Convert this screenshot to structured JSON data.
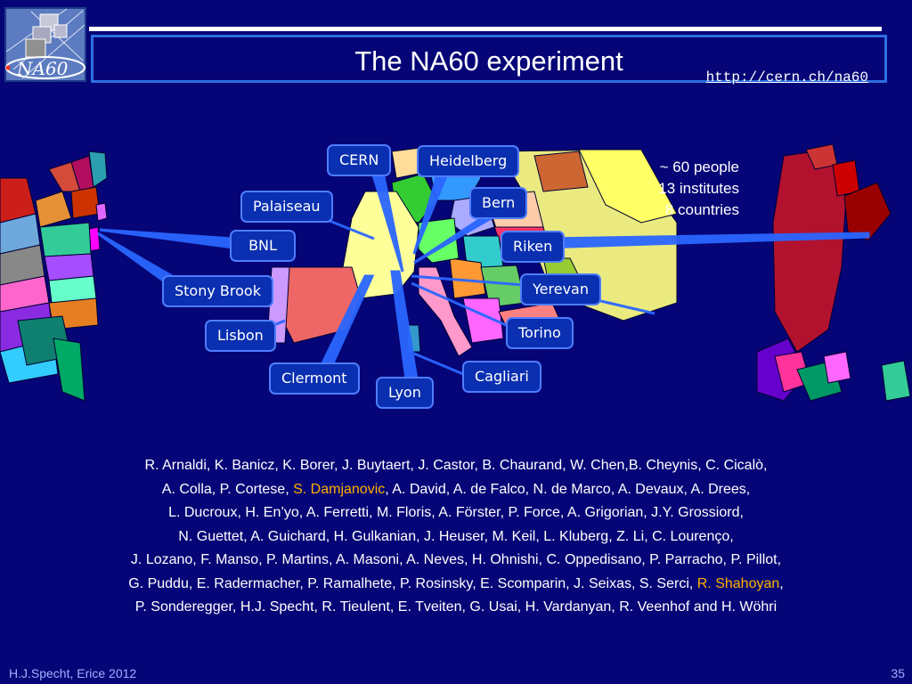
{
  "header": {
    "title": "The NA60 experiment",
    "url": "http://cern.ch/na60",
    "logo_text": "NA60"
  },
  "stats": {
    "people": "~ 60 people",
    "institutes": "13 institutes",
    "countries": "8 countries"
  },
  "cities": {
    "cern": "CERN",
    "heidelberg": "Heidelberg",
    "palaiseau": "Palaiseau",
    "bern": "Bern",
    "bnl": "BNL",
    "riken": "Riken",
    "stony_brook": "Stony Brook",
    "yerevan": "Yerevan",
    "lisbon": "Lisbon",
    "torino": "Torino",
    "cagliari": "Cagliari",
    "clermont": "Clermont",
    "lyon": "Lyon"
  },
  "authors": {
    "l1": "R. Arnaldi, K. Banicz, K. Borer, J. Buytaert, J. Castor, B. Chaurand, W. Chen,B. Cheynis, C. Cicalò,",
    "l2a": "A. Colla, P. Cortese, ",
    "l2b": "S. Damjanovic",
    "l2c": ", A. David, A. de Falco, N. de Marco, A. Devaux,  A. Drees,",
    "l3": "L. Ducroux, H. En’yo, A. Ferretti, M. Floris, A. Förster, P. Force, A. Grigorian, J.Y. Grossiord,",
    "l4": "N. Guettet, A. Guichard, H. Gulkanian, J. Heuser, M. Keil, L. Kluberg, Z. Li, C. Lourenço,",
    "l5": "J. Lozano, F. Manso, P. Martins, A. Masoni, A. Neves, H. Ohnishi, C. Oppedisano, P. Parracho, P. Pillot,",
    "l6a": "G. Puddu, E. Radermacher, P. Ramalhete, P. Rosinsky, E. Scomparin, J. Seixas, S. Serci, ",
    "l6b": "R. Shahoyan",
    "l6c": ",",
    "l7": "P. Sonderegger, H.J. Specht, R. Tieulent, E. Tveiten, G. Usai, H. Vardanyan, R. Veenhof and H. Wöhri"
  },
  "footer": {
    "left": "H.J.Specht, Erice 2012",
    "page": "35"
  },
  "colors": {
    "background": "#050577",
    "accent": "#2d6fe0",
    "highlight": "#ffb000"
  }
}
